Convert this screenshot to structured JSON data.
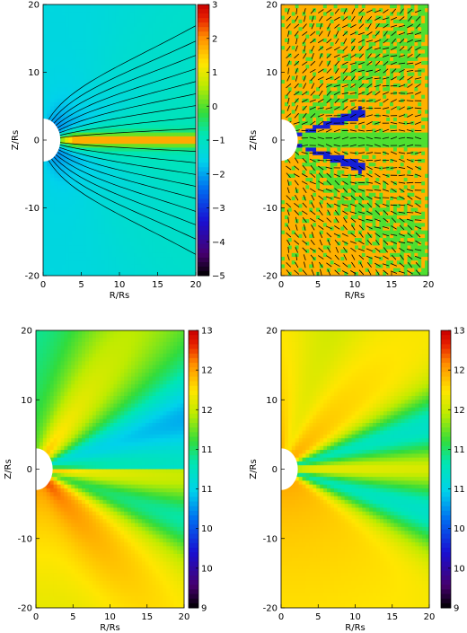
{
  "chart_data": [
    {
      "type": "heatmap",
      "panel": "top-left",
      "xlabel": "R/Rs",
      "ylabel": "Z/Rs",
      "xlim": [
        0,
        20
      ],
      "ylim": [
        -20,
        20
      ],
      "x_ticks": [
        "0",
        "5",
        "10",
        "15",
        "20"
      ],
      "y_ticks": [
        "-20",
        "-10",
        "0",
        "10",
        "20"
      ],
      "colorbar": {
        "ticks": [
          "3",
          "2",
          "1",
          "0",
          "−1",
          "−2",
          "−3",
          "−4",
          "−5"
        ],
        "range": [
          -5,
          3
        ]
      },
      "overlay": "black field lines"
    },
    {
      "type": "heatmap",
      "panel": "top-right",
      "xlabel": "R/Rs",
      "ylabel": "Z/Rs",
      "xlim": [
        0,
        20
      ],
      "ylim": [
        -20,
        20
      ],
      "x_ticks": [
        "0",
        "5",
        "10",
        "15",
        "20"
      ],
      "y_ticks": [
        "-20",
        "-10",
        "0",
        "10",
        "20"
      ],
      "overlay": "black vector arrows"
    },
    {
      "type": "heatmap",
      "panel": "bottom-left",
      "xlabel": "R/Rs",
      "ylabel": "Z/Rs",
      "xlim": [
        0,
        20
      ],
      "ylim": [
        -20,
        20
      ],
      "x_ticks": [
        "0",
        "5",
        "10",
        "15",
        "20"
      ],
      "y_ticks": [
        "-20",
        "-10",
        "0",
        "10",
        "20"
      ],
      "colorbar": {
        "ticks": [
          "13",
          "12",
          "12",
          "11",
          "11",
          "10",
          "10",
          "9"
        ],
        "range": [
          9,
          13
        ]
      }
    },
    {
      "type": "heatmap",
      "panel": "bottom-right",
      "xlabel": "R/Rs",
      "ylabel": "Z/Rs",
      "xlim": [
        0,
        20
      ],
      "ylim": [
        -20,
        20
      ],
      "x_ticks": [
        "0",
        "5",
        "10",
        "15",
        "20"
      ],
      "y_ticks": [
        "-20",
        "-10",
        "0",
        "10",
        "20"
      ],
      "colorbar": {
        "ticks": [
          "13",
          "12",
          "12",
          "11",
          "11",
          "10",
          "10",
          "9"
        ],
        "range": [
          9,
          13
        ]
      }
    }
  ]
}
